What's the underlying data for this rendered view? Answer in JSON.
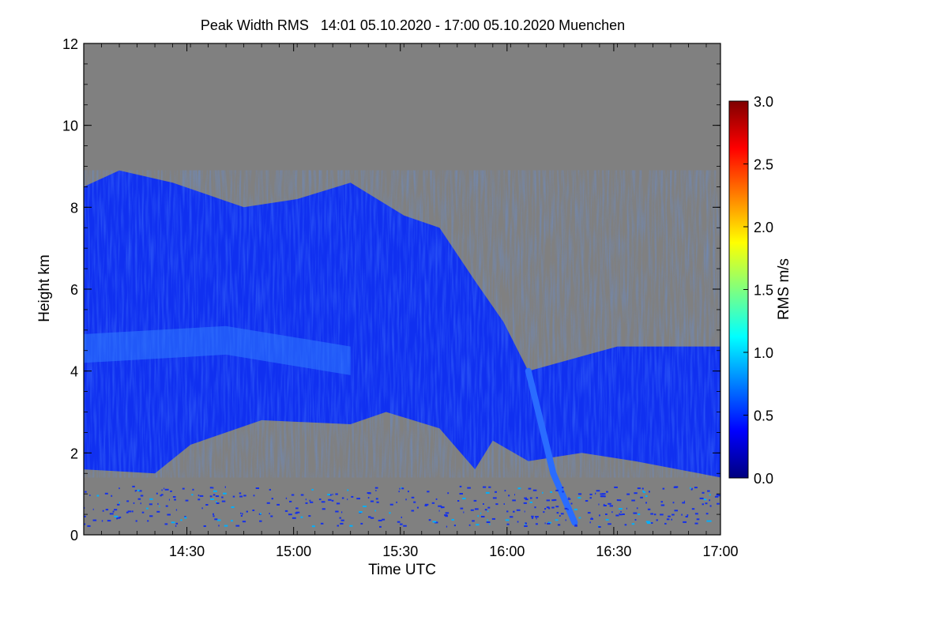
{
  "chart_data": {
    "type": "heatmap",
    "title": "Peak Width RMS   14:01 05.10.2020 - 17:00 05.10.2020 Muenchen",
    "xlabel": "Time UTC",
    "ylabel": "Height km",
    "xlim": [
      "14:01",
      "17:00"
    ],
    "ylim": [
      0,
      12
    ],
    "x_ticks": [
      "14:30",
      "15:00",
      "15:30",
      "16:00",
      "16:30",
      "17:00"
    ],
    "y_ticks": [
      "0",
      "2",
      "4",
      "6",
      "8",
      "10",
      "12"
    ],
    "colorbar": {
      "label": "RMS m/s",
      "range": [
        0.0,
        3.0
      ],
      "ticks": [
        "0.0",
        "0.5",
        "1.0",
        "1.5",
        "2.0",
        "2.5",
        "3.0"
      ],
      "colormap": [
        "#00007f",
        "#0000ff",
        "#007fff",
        "#00ffff",
        "#7fff7f",
        "#ffff00",
        "#ff7f00",
        "#ff0000",
        "#7f0000"
      ]
    },
    "background_color": "#808080",
    "echo_regions": [
      {
        "name": "main-cloud",
        "top": [
          [
            0,
            8.5
          ],
          [
            10,
            8.9
          ],
          [
            25,
            8.6
          ],
          [
            45,
            8.0
          ],
          [
            60,
            8.2
          ],
          [
            75,
            8.6
          ],
          [
            90,
            7.8
          ],
          [
            100,
            7.5
          ],
          [
            110,
            6.2
          ],
          [
            118,
            5.2
          ],
          [
            125,
            4.0
          ],
          [
            150,
            4.6
          ],
          [
            179,
            4.6
          ]
        ],
        "bottom": [
          [
            0,
            1.6
          ],
          [
            20,
            1.5
          ],
          [
            30,
            2.2
          ],
          [
            50,
            2.8
          ],
          [
            75,
            2.7
          ],
          [
            85,
            3.0
          ],
          [
            100,
            2.6
          ],
          [
            110,
            1.6
          ],
          [
            115,
            2.3
          ],
          [
            125,
            1.8
          ],
          [
            140,
            2.0
          ],
          [
            155,
            1.8
          ],
          [
            179,
            1.4
          ]
        ]
      },
      {
        "name": "fall-streak",
        "center": [
          [
            125,
            4.0
          ],
          [
            132,
            1.5
          ],
          [
            138,
            0.3
          ]
        ]
      },
      {
        "name": "enhanced-layer",
        "band": [
          [
            0,
            4.6
          ],
          [
            40,
            4.8
          ],
          [
            75,
            4.3
          ]
        ],
        "approx_value": 0.8
      },
      {
        "name": "near-ground-clutter",
        "band": [
          [
            0,
            0.2
          ],
          [
            179,
            1.2
          ]
        ]
      }
    ]
  }
}
